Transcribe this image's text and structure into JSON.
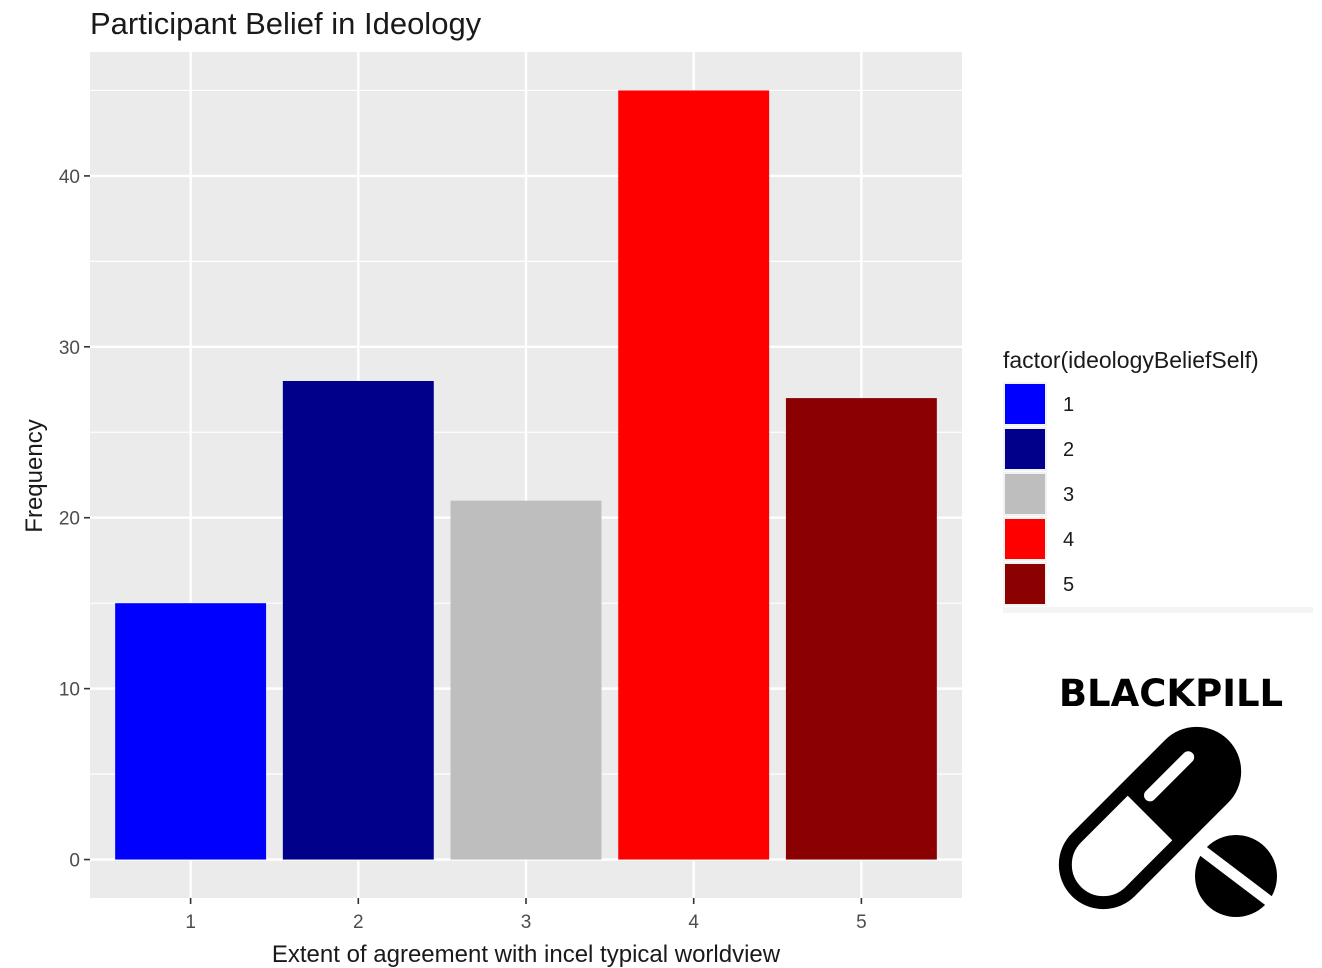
{
  "chart_data": {
    "type": "bar",
    "title": "Participant Belief in Ideology",
    "xlabel": "Extent of agreement with incel typical worldview",
    "ylabel": "Frequency",
    "categories": [
      "1",
      "2",
      "3",
      "4",
      "5"
    ],
    "values": [
      15,
      28,
      21,
      45,
      27
    ],
    "colors": [
      "#0000FF",
      "#00008B",
      "#BEBEBE",
      "#FF0000",
      "#8B0000"
    ],
    "y_ticks": [
      0,
      10,
      20,
      30,
      40
    ],
    "ylim": [
      -2.25,
      47.25
    ],
    "grid": true,
    "panel_background": "#EBEBEB",
    "legend": {
      "title": "factor(ideologyBeliefSelf)",
      "position": "right",
      "items": [
        "1",
        "2",
        "3",
        "4",
        "5"
      ]
    }
  },
  "logo": {
    "text": "BLACKPILL",
    "icon": "pill-capsule-and-tablet-icon"
  }
}
